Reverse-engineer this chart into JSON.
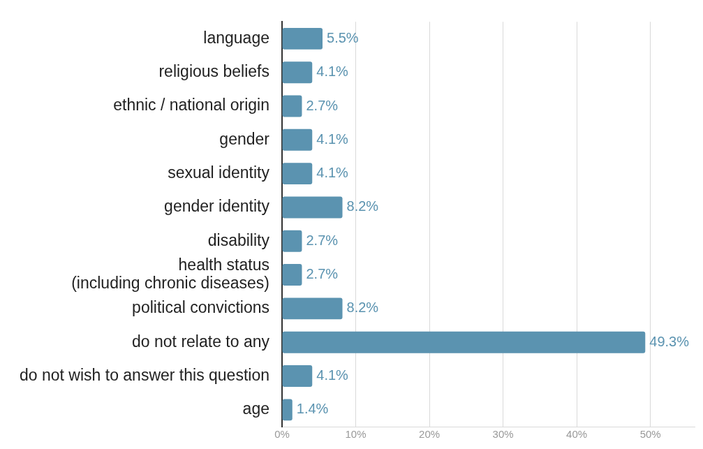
{
  "chart_data": {
    "type": "bar",
    "orientation": "horizontal",
    "categories": [
      "language",
      "religious beliefs",
      "ethnic / national origin",
      "gender",
      "sexual identity",
      "gender identity",
      "disability",
      "health status\n(including chronic diseases)",
      "political convictions",
      "do not relate to any",
      "do not wish to answer this question",
      "age"
    ],
    "values": [
      5.5,
      4.1,
      2.7,
      4.1,
      4.1,
      8.2,
      2.7,
      2.7,
      8.2,
      49.3,
      4.1,
      1.4
    ],
    "value_labels": [
      "5.5%",
      "4.1%",
      "2.7%",
      "4.1%",
      "4.1%",
      "8.2%",
      "2.7%",
      "2.7%",
      "8.2%",
      "49.3%",
      "4.1%",
      "1.4%"
    ],
    "color": "#5b93b0",
    "xlim": [
      0,
      56
    ],
    "xticks": [
      {
        "value": 0,
        "label": "0%"
      },
      {
        "value": 10,
        "label": "10%"
      },
      {
        "value": 20,
        "label": "20%"
      },
      {
        "value": 30,
        "label": "30%"
      },
      {
        "value": 40,
        "label": "40%"
      },
      {
        "value": 50,
        "label": "50%"
      }
    ],
    "grid": "x",
    "legend": false
  }
}
